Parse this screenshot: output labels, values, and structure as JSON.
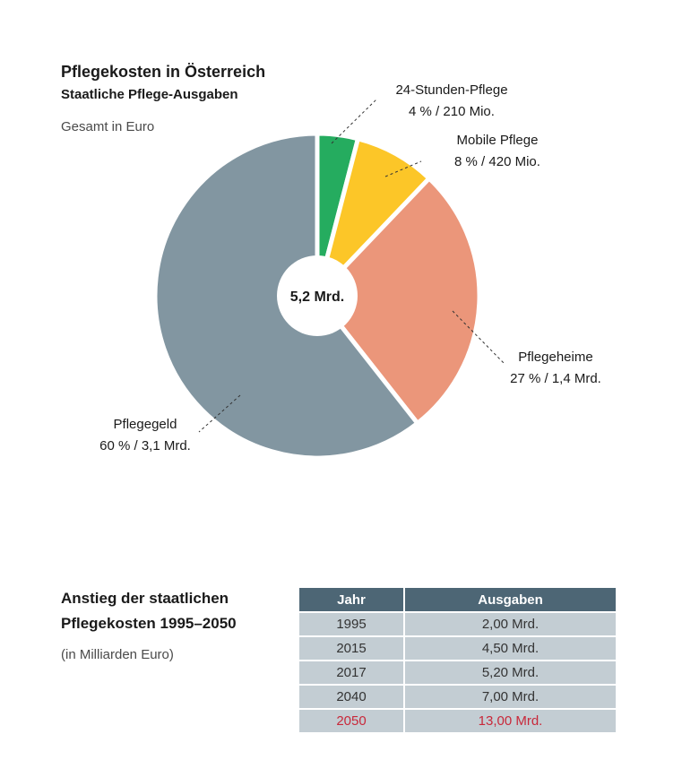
{
  "header": {
    "title": "Pflegekosten in Österreich",
    "subtitle": "Staatliche Pflege-Ausgaben",
    "note": "Gesamt in Euro"
  },
  "chart_data": {
    "type": "pie",
    "center_label": "5,2 Mrd.",
    "slices": [
      {
        "name": "24-Stunden-Pflege",
        "value": 4,
        "label": "4 % / 210 Mio.",
        "color": "#25ac5f"
      },
      {
        "name": "Mobile Pflege",
        "value": 8,
        "label": "8 % / 420 Mio.",
        "color": "#fcc628"
      },
      {
        "name": "Pflegeheime",
        "value": 27,
        "label": "27 % / 1,4 Mrd.",
        "color": "#eb967a"
      },
      {
        "name": "Pflegegeld",
        "value": 60,
        "label": "60 % / 3,1 Mrd.",
        "color": "#8296a1"
      }
    ]
  },
  "table_section": {
    "title_line1": "Anstieg der staatlichen",
    "title_line2": "Pflegekosten 1995–2050",
    "note": "(in Milliarden Euro)",
    "columns": [
      "Jahr",
      "Ausgaben"
    ],
    "rows": [
      {
        "year": "1995",
        "amount": "2,00 Mrd."
      },
      {
        "year": "2015",
        "amount": "4,50 Mrd."
      },
      {
        "year": "2017",
        "amount": "5,20 Mrd."
      },
      {
        "year": "2040",
        "amount": "7,00 Mrd."
      },
      {
        "year": "2050",
        "amount": "13,00 Mrd.",
        "highlight": true
      }
    ],
    "highlight_color": "#c8283a"
  }
}
